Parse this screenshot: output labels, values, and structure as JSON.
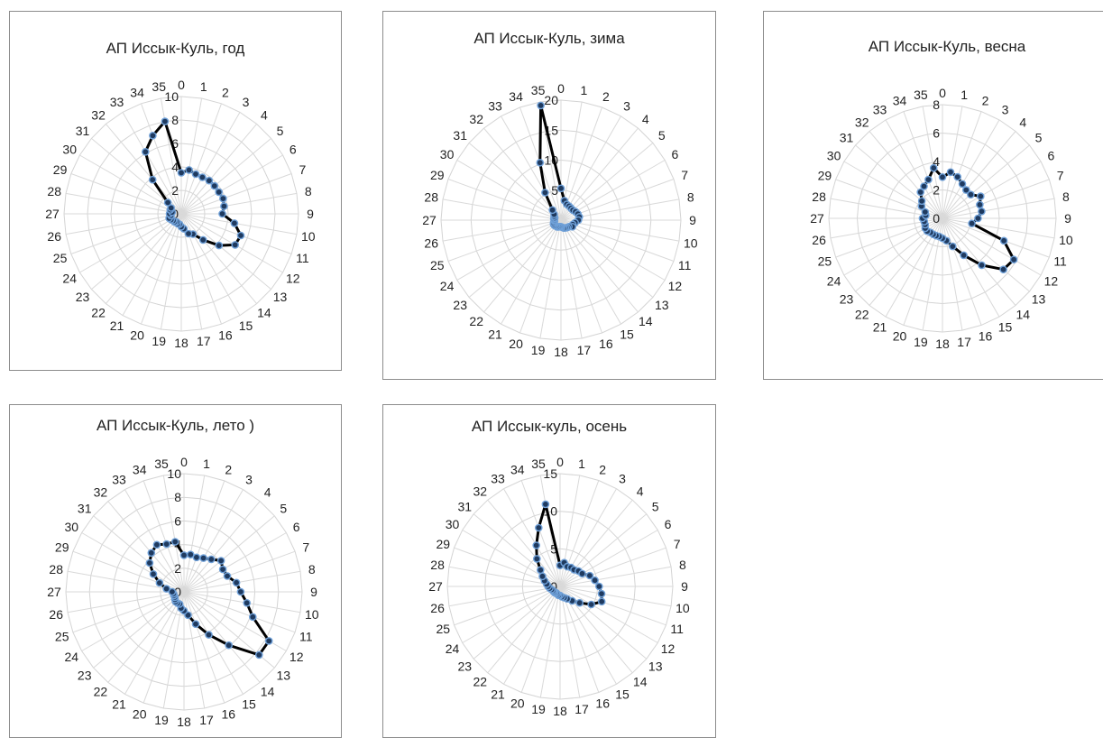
{
  "chart_data": [
    {
      "type": "radar",
      "title": "АП Иссык-Куль, год",
      "categories": [
        "0",
        "1",
        "2",
        "3",
        "4",
        "5",
        "6",
        "7",
        "8",
        "9",
        "10",
        "11",
        "12",
        "13",
        "14",
        "15",
        "16",
        "17",
        "18",
        "19",
        "20",
        "21",
        "22",
        "23",
        "24",
        "25",
        "26",
        "27",
        "28",
        "29",
        "30",
        "31",
        "32",
        "33",
        "34",
        "35"
      ],
      "ticks": [
        "0",
        "2",
        "4",
        "6",
        "8",
        "10"
      ],
      "rmax": 10,
      "values": [
        3.5,
        3.8,
        3.6,
        3.6,
        3.7,
        3.7,
        3.7,
        3.8,
        3.7,
        3.5,
        4.6,
        5.4,
        5.3,
        4.2,
        2.9,
        2.0,
        1.8,
        1.3,
        1.1,
        0.9,
        0.9,
        0.8,
        0.9,
        0.9,
        1.0,
        1.1,
        0.9,
        1.0,
        0.8,
        1.0,
        1.0,
        1.5,
        3.8,
        6.1,
        7.1,
        8.0
      ],
      "colors": {
        "line": "#000000",
        "marker_fill": "#1f3a5f",
        "marker_edge": "#6fa0d8",
        "grid": "#d4d4d4"
      }
    },
    {
      "type": "radar",
      "title": "АП Иссык-Куль, зима",
      "categories": [
        "0",
        "1",
        "2",
        "3",
        "4",
        "5",
        "6",
        "7",
        "8",
        "9",
        "10",
        "11",
        "12",
        "13",
        "14",
        "15",
        "16",
        "17",
        "18",
        "19",
        "20",
        "21",
        "22",
        "23",
        "24",
        "25",
        "26",
        "27",
        "28",
        "29",
        "30",
        "31",
        "32",
        "33",
        "34",
        "35"
      ],
      "ticks": [
        "0",
        "5",
        "10",
        "15",
        "20"
      ],
      "rmax": 20,
      "values": [
        5.3,
        3.3,
        2.8,
        2.7,
        2.6,
        2.6,
        2.8,
        3.0,
        3.1,
        2.9,
        2.4,
        2.1,
        2.2,
        1.7,
        1.6,
        1.5,
        1.4,
        1.2,
        1.1,
        1.1,
        1.2,
        1.3,
        1.3,
        1.4,
        1.4,
        1.3,
        1.1,
        1.1,
        1.2,
        1.1,
        1.3,
        1.5,
        2.2,
        5.3,
        10.2,
        19.4
      ],
      "colors": {
        "line": "#000000",
        "marker_fill": "#1f3a5f",
        "marker_edge": "#6fa0d8",
        "grid": "#d4d4d4"
      }
    },
    {
      "type": "radar",
      "title": "АП Иссык-Куль, весна",
      "categories": [
        "0",
        "1",
        "2",
        "3",
        "4",
        "5",
        "6",
        "7",
        "8",
        "9",
        "10",
        "11",
        "12",
        "13",
        "14",
        "15",
        "16",
        "17",
        "18",
        "19",
        "20",
        "21",
        "22",
        "23",
        "24",
        "25",
        "26",
        "27",
        "28",
        "29",
        "30",
        "31",
        "32",
        "33",
        "34",
        "35"
      ],
      "ticks": [
        "0",
        "2",
        "4",
        "6",
        "8"
      ],
      "rmax": 8,
      "values": [
        2.9,
        3.3,
        3.1,
        2.8,
        2.6,
        2.6,
        3.1,
        2.8,
        2.8,
        2.5,
        2.1,
        4.6,
        5.8,
        5.6,
        4.3,
        3.0,
        2.1,
        1.6,
        1.4,
        1.3,
        1.3,
        1.3,
        1.3,
        1.4,
        1.4,
        1.3,
        1.3,
        1.4,
        1.2,
        1.3,
        1.7,
        1.9,
        2.4,
        2.6,
        2.9,
        3.6
      ],
      "colors": {
        "line": "#000000",
        "marker_fill": "#1f3a5f",
        "marker_edge": "#6fa0d8",
        "grid": "#d4d4d4"
      }
    },
    {
      "type": "radar",
      "title": "АП Иссык-Куль, лето )",
      "categories": [
        "0",
        "1",
        "2",
        "3",
        "4",
        "5",
        "6",
        "7",
        "8",
        "9",
        "10",
        "11",
        "12",
        "13",
        "14",
        "15",
        "16",
        "17",
        "18",
        "19",
        "20",
        "21",
        "22",
        "23",
        "24",
        "25",
        "26",
        "27",
        "28",
        "29",
        "30",
        "31",
        "32",
        "33",
        "34",
        "35"
      ],
      "ticks": [
        "0",
        "2",
        "4",
        "6",
        "8",
        "10"
      ],
      "rmax": 10,
      "values": [
        3.1,
        3.2,
        3.1,
        3.3,
        3.6,
        4.1,
        3.8,
        3.9,
        4.5,
        4.8,
        5.4,
        6.2,
        8.3,
        8.3,
        5.9,
        4.2,
        2.9,
        2.0,
        1.6,
        1.4,
        1.1,
        1.1,
        1.1,
        1.0,
        0.9,
        0.9,
        0.9,
        1.0,
        1.5,
        2.2,
        3.0,
        3.8,
        4.3,
        4.6,
        4.3,
        4.3
      ],
      "colors": {
        "line": "#000000",
        "marker_fill": "#1f3a5f",
        "marker_edge": "#6fa0d8",
        "grid": "#d4d4d4"
      }
    },
    {
      "type": "radar",
      "title": "АП Иссык-куль, осень",
      "categories": [
        "0",
        "1",
        "2",
        "3",
        "4",
        "5",
        "6",
        "7",
        "8",
        "9",
        "10",
        "11",
        "12",
        "13",
        "14",
        "15",
        "16",
        "17",
        "18",
        "19",
        "20",
        "21",
        "22",
        "23",
        "24",
        "25",
        "26",
        "27",
        "28",
        "29",
        "30",
        "31",
        "32",
        "33",
        "34",
        "35"
      ],
      "ticks": [
        "0",
        "5",
        "10",
        "15"
      ],
      "rmax": 15,
      "values": [
        2.8,
        3.2,
        2.8,
        2.9,
        2.9,
        3.2,
        3.4,
        4.2,
        4.7,
        5.2,
        5.6,
        5.9,
        4.8,
        3.4,
        2.5,
        1.9,
        1.6,
        1.4,
        1.2,
        1.2,
        1.1,
        1.0,
        1.1,
        1.1,
        1.1,
        1.2,
        1.4,
        1.6,
        1.8,
        2.2,
        2.7,
        3.4,
        4.8,
        6.3,
        8.3,
        11.1
      ],
      "colors": {
        "line": "#000000",
        "marker_fill": "#1f3a5f",
        "marker_edge": "#6fa0d8",
        "grid": "#d4d4d4"
      }
    }
  ]
}
